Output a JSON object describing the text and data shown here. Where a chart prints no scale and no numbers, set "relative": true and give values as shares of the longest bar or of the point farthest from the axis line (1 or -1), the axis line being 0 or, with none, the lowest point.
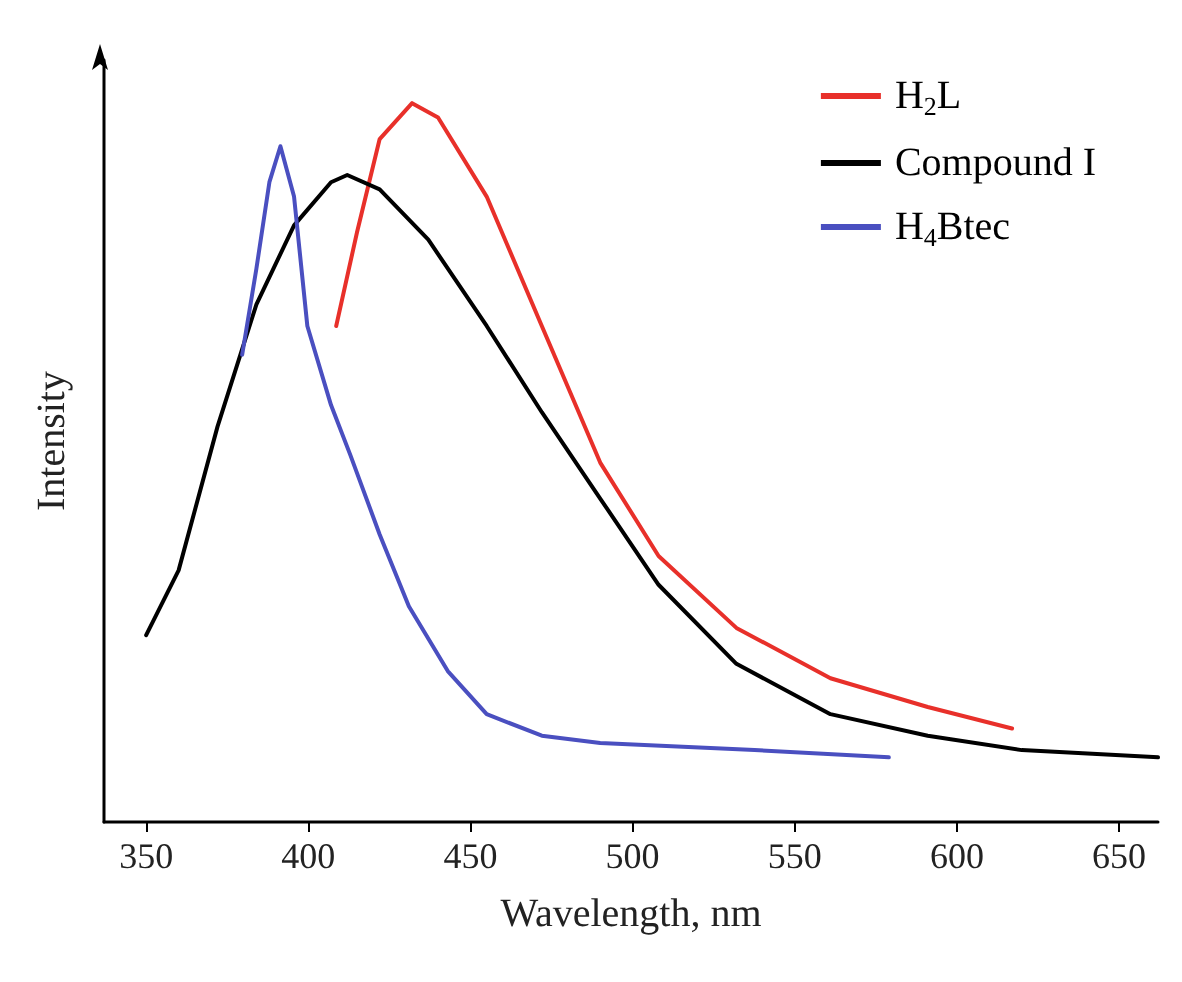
{
  "chart_data": {
    "type": "line",
    "relative": true,
    "xlabel": "Wavelength, nm",
    "ylabel": "Intensity",
    "xlim": [
      337,
      662
    ],
    "xticks": [
      350,
      400,
      450,
      500,
      550,
      600,
      650
    ],
    "grid": false,
    "legend": "top right",
    "marker": "none",
    "line_style": "solid",
    "series": [
      {
        "name": "H$_{2}$L",
        "color": "#e8302a",
        "x": [
          408.6,
          415,
          422,
          432,
          440,
          455,
          472,
          490,
          508,
          532,
          561,
          591,
          617
        ],
        "values": [
          0.69,
          0.82,
          0.95,
          1.0,
          0.98,
          0.87,
          0.69,
          0.5,
          0.37,
          0.27,
          0.2,
          0.16,
          0.13
        ]
      },
      {
        "name": "Compound I",
        "color": "#000000",
        "x": [
          350,
          360,
          372,
          384,
          395.6,
          407,
          412,
          422,
          437,
          455,
          472,
          490,
          508,
          532,
          561,
          591,
          620,
          662
        ],
        "values": [
          0.26,
          0.35,
          0.55,
          0.72,
          0.83,
          0.89,
          0.9,
          0.88,
          0.81,
          0.69,
          0.57,
          0.45,
          0.33,
          0.22,
          0.15,
          0.12,
          0.1,
          0.09
        ]
      },
      {
        "name": "H$_{4}$Btec",
        "color": "#4a4fc0",
        "x": [
          379.6,
          384,
          388,
          391.4,
          395.6,
          399.7,
          407,
          413,
          422,
          431,
          443,
          455,
          472,
          490,
          537.6,
          579
        ],
        "values": [
          0.65,
          0.77,
          0.89,
          0.94,
          0.87,
          0.69,
          0.58,
          0.51,
          0.4,
          0.3,
          0.21,
          0.15,
          0.12,
          0.11,
          0.1,
          0.09
        ]
      }
    ]
  }
}
